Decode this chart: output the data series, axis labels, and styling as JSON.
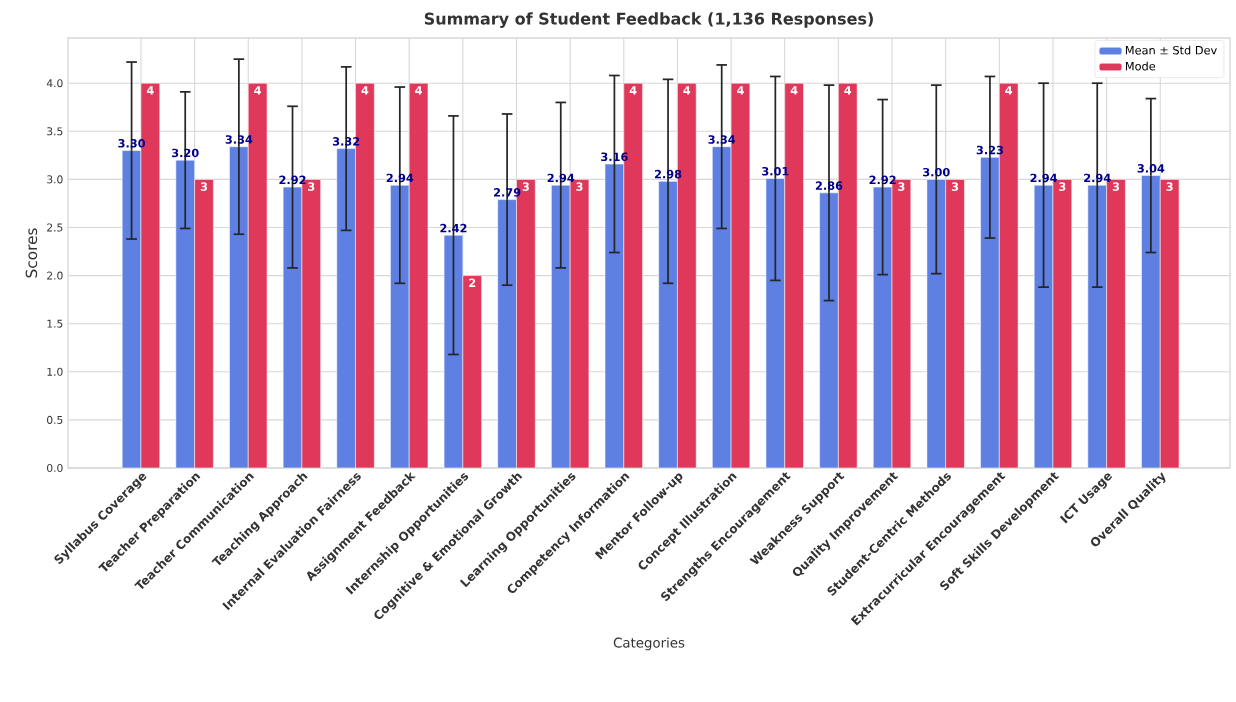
{
  "chart_data": {
    "type": "bar",
    "title": "Summary of Student Feedback (1,136 Responses)",
    "xlabel": "Categories",
    "ylabel": "Scores",
    "categories": [
      "Syllabus Coverage",
      "Teacher Preparation",
      "Teacher Communication",
      "Teaching Approach",
      "Internal Evaluation Fairness",
      "Assignment Feedback",
      "Internship Opportunities",
      "Cognitive & Emotional Growth",
      "Learning Opportunities",
      "Competency Information",
      "Mentor Follow-up",
      "Concept Illustration",
      "Strengths Encouragement",
      "Weakness Support",
      "Quality Improvement",
      "Student-Centric Methods",
      "Extracurricular Encouragement",
      "Soft Skills Development",
      "ICT Usage",
      "Overall Quality"
    ],
    "series": [
      {
        "name": "Mean ± Std Dev",
        "color": "#5f80e3",
        "values": [
          3.3,
          3.2,
          3.34,
          2.92,
          3.32,
          2.94,
          2.42,
          2.79,
          2.94,
          3.16,
          2.98,
          3.34,
          3.01,
          2.86,
          2.92,
          3.0,
          3.23,
          2.94,
          2.94,
          3.04
        ],
        "errors": [
          0.92,
          0.71,
          0.91,
          0.84,
          0.85,
          1.02,
          1.24,
          0.89,
          0.86,
          0.92,
          1.06,
          0.85,
          1.06,
          1.12,
          0.91,
          0.98,
          0.84,
          1.06,
          1.06,
          0.8
        ],
        "value_labels": [
          "3.30",
          "3.20",
          "3.34",
          "2.92",
          "3.32",
          "2.94",
          "2.42",
          "2.79",
          "2.94",
          "3.16",
          "2.98",
          "3.34",
          "3.01",
          "2.86",
          "2.92",
          "3.00",
          "3.23",
          "2.94",
          "2.94",
          "3.04"
        ]
      },
      {
        "name": "Mode",
        "color": "#e0385a",
        "values": [
          4,
          3,
          4,
          3,
          4,
          4,
          2,
          3,
          3,
          4,
          4,
          4,
          4,
          4,
          3,
          3,
          4,
          3,
          3,
          3
        ],
        "value_labels": [
          "4",
          "3",
          "4",
          "3",
          "4",
          "4",
          "2",
          "3",
          "3",
          "4",
          "4",
          "4",
          "4",
          "4",
          "3",
          "3",
          "4",
          "3",
          "3",
          "3"
        ]
      }
    ],
    "ylim": [
      0,
      4.47
    ],
    "yticks": [
      {
        "value": 0,
        "label": "0.0"
      },
      {
        "value": 0.5,
        "label": "0.5"
      },
      {
        "value": 1,
        "label": "1.0"
      },
      {
        "value": 1.5,
        "label": "1.5"
      },
      {
        "value": 2,
        "label": "2.0"
      },
      {
        "value": 2.5,
        "label": "2.5"
      },
      {
        "value": 3,
        "label": "3.0"
      },
      {
        "value": 3.5,
        "label": "3.5"
      },
      {
        "value": 4,
        "label": "4.0"
      }
    ],
    "grid": true,
    "legend": "top right"
  }
}
